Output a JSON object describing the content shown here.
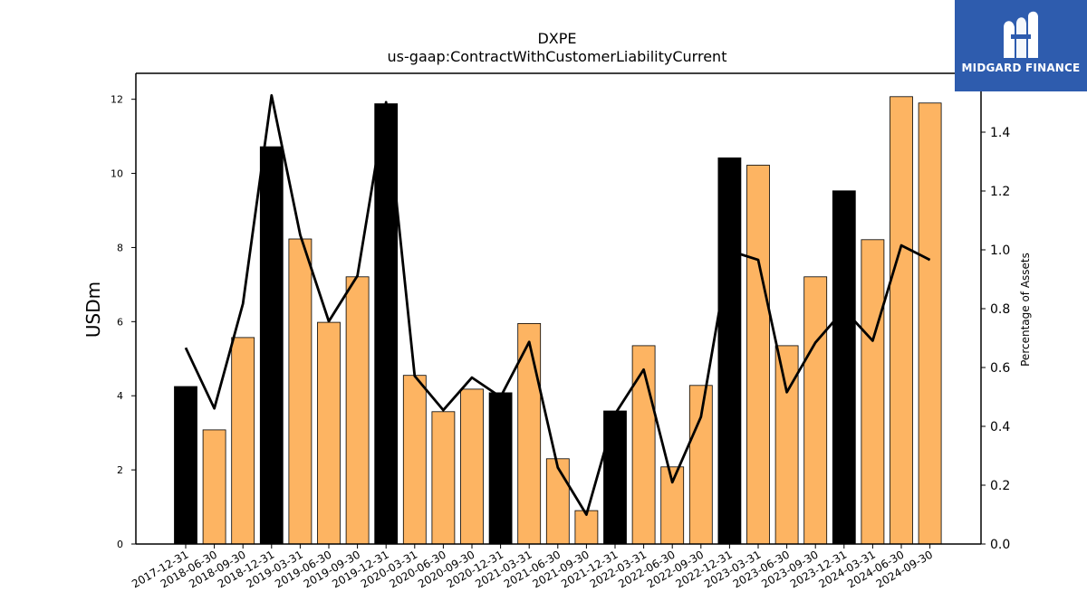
{
  "chart_data": {
    "type": "bar",
    "title": "DXPE",
    "subtitle": "us-gaap:ContractWithCustomerLiabilityCurrent",
    "ylabel": "USDm",
    "y2label": "Percentage of Assets",
    "ylim": [
      0,
      12.7
    ],
    "y2lim": [
      0,
      1.6
    ],
    "yticks": [
      "0",
      "2",
      "4",
      "6",
      "8",
      "10",
      "12"
    ],
    "y2ticks": [
      "0.0",
      "0.2",
      "0.4",
      "0.6",
      "0.8",
      "1.0",
      "1.2",
      "1.4"
    ],
    "categories": [
      "2017-12-31",
      "2018-06-30",
      "2018-09-30",
      "2018-12-31",
      "2019-03-31",
      "2019-06-30",
      "2019-09-30",
      "2019-12-31",
      "2020-03-31",
      "2020-06-30",
      "2020-09-30",
      "2020-12-31",
      "2021-03-31",
      "2021-06-30",
      "2021-09-30",
      "2021-12-31",
      "2022-03-31",
      "2022-06-30",
      "2022-09-30",
      "2022-12-31",
      "2023-03-31",
      "2023-06-30",
      "2023-09-30",
      "2023-12-31",
      "2024-03-31",
      "2024-06-30",
      "2024-09-30"
    ],
    "series": [
      {
        "values": [
          4.25,
          3.08,
          5.57,
          10.72,
          8.23,
          5.98,
          7.21,
          11.88,
          4.55,
          3.57,
          4.18,
          4.08,
          5.95,
          2.3,
          0.9,
          3.59,
          5.35,
          2.08,
          4.28,
          10.42,
          10.22,
          5.35,
          7.21,
          9.53,
          8.21,
          12.07,
          11.9
        ],
        "annual": [
          true,
          false,
          false,
          true,
          false,
          false,
          false,
          true,
          false,
          false,
          false,
          true,
          false,
          false,
          false,
          true,
          false,
          false,
          false,
          true,
          false,
          false,
          false,
          true,
          false,
          false,
          false
        ]
      },
      {
        "axis": "right",
        "type": "line",
        "values": [
          0.667,
          0.461,
          0.817,
          1.525,
          1.051,
          0.757,
          0.912,
          1.502,
          0.571,
          0.455,
          0.566,
          0.5,
          0.687,
          0.26,
          0.1,
          0.442,
          0.593,
          0.21,
          0.432,
          0.997,
          0.966,
          0.516,
          0.685,
          0.797,
          0.691,
          1.015,
          0.966
        ]
      }
    ],
    "colors": {
      "annual_bar": "#000000",
      "quarter_bar": "#fdb462",
      "line": "#000000"
    }
  },
  "logo": {
    "text": "MIDGARD FINANCE",
    "background": "#2e5cae"
  }
}
